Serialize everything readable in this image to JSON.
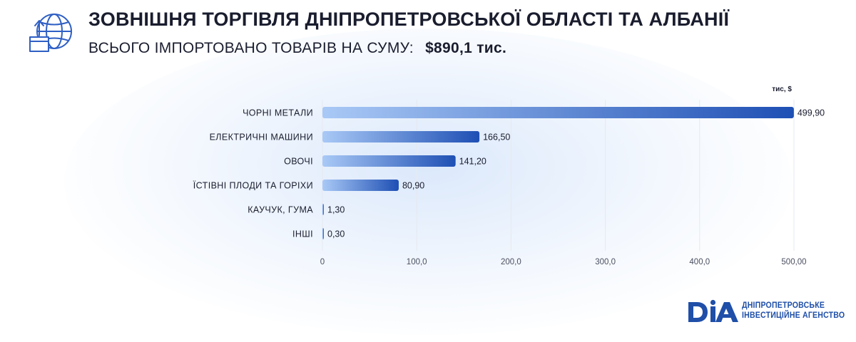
{
  "header": {
    "title": "ЗОВНІШНЯ ТОРГІВЛЯ ДНІПРОПЕТРОВСЬКОЇ ОБЛАСТІ ТА АЛБАНІЇ",
    "subtitle_prefix": "ВСЬОГО ІМПОРТОВАНО ТОВАРІВ НА СУМУ:",
    "subtitle_total": "$890,1 тис.",
    "icon": "globe-box-import-icon"
  },
  "colors": {
    "bar_start": "#a9c9f6",
    "bar_end": "#1e4fb4",
    "text": "#1a1d2e",
    "grid": "#e6e9ef",
    "brand": "#1f4fa8"
  },
  "chart_data": {
    "type": "bar",
    "orientation": "horizontal",
    "unit_label": "тис, $",
    "categories": [
      "ЧОРНІ МЕТАЛИ",
      "ЕЛЕКТРИЧНІ МАШИНИ",
      "ОВОЧІ",
      "ЇСТІВНІ ПЛОДИ ТА ГОРІХИ",
      "КАУЧУК, ГУМА",
      "ІНШІ"
    ],
    "values": [
      499.9,
      166.5,
      141.2,
      80.9,
      1.3,
      0.3
    ],
    "value_labels": [
      "499,90",
      "166,50",
      "141,20",
      "80,90",
      "1,30",
      "0,30"
    ],
    "xlim": [
      0,
      500
    ],
    "ticks": [
      0,
      100,
      200,
      300,
      400,
      500
    ],
    "tick_labels": [
      "0",
      "100,0",
      "200,0",
      "300,0",
      "400,0",
      "500,00"
    ],
    "grid": true
  },
  "logo": {
    "mark": "DIA",
    "line1": "ДНІПРОПЕТРОВСЬКЕ",
    "line2": "ІНВЕСТИЦІЙНЕ АГЕНСТВО"
  }
}
